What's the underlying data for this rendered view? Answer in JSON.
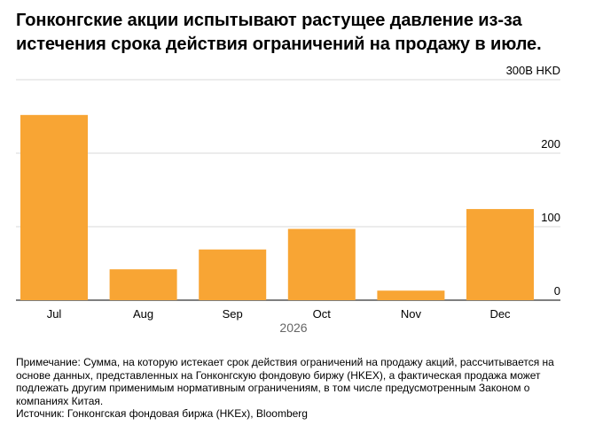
{
  "title": "Гонконгские акции испытывают растущее давление из-за истечения срока действия ограничений на продажу в июле.",
  "chart_data": {
    "type": "bar",
    "categories": [
      "Jul",
      "Aug",
      "Sep",
      "Oct",
      "Nov",
      "Dec"
    ],
    "values": [
      252,
      42,
      69,
      97,
      13,
      124
    ],
    "y_ticks": [
      {
        "value": 300,
        "label": "300B HKD"
      },
      {
        "value": 200,
        "label": "200"
      },
      {
        "value": 100,
        "label": "100"
      },
      {
        "value": 0,
        "label": "0"
      }
    ],
    "ylim": [
      0,
      300
    ],
    "x_year_label": "2026",
    "bar_color": "#F8A534",
    "grid": true
  },
  "notes": {
    "note": "Примечание: Сумма, на которую истекает срок действия ограничений на продажу акций, рассчитывается на основе данных, представленных на Гонконгскую фондовую биржу (HKEX), а фактическая продажа может подлежать другим применимым нормативным ограничениям, в том числе предусмотренным Законом о компаниях Китая.",
    "source": "Источник: Гонконгская фондовая биржа (HKEx), Bloomberg"
  }
}
